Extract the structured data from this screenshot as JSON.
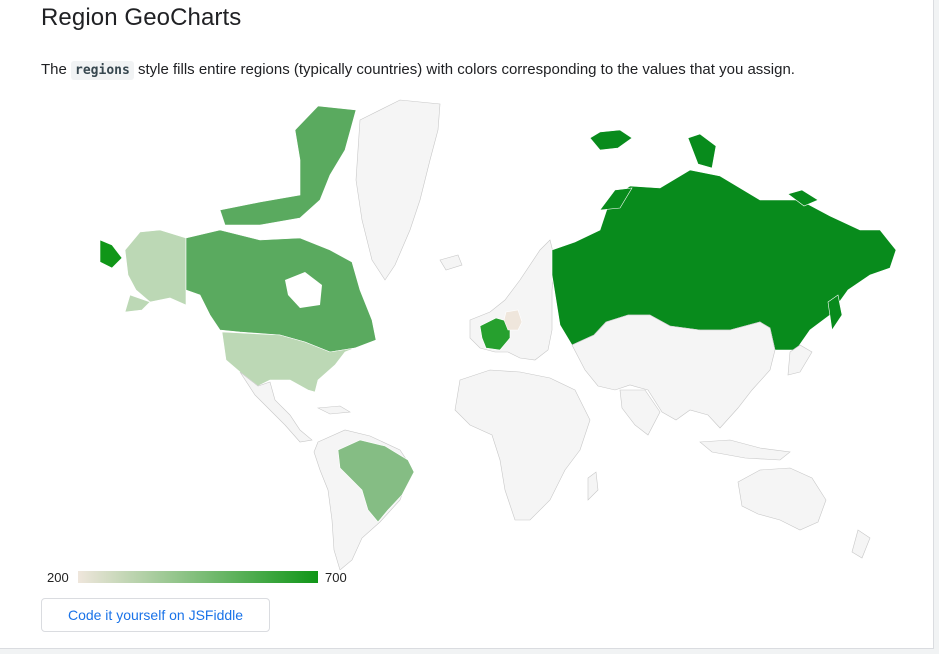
{
  "page": {
    "title": "Region GeoCharts",
    "desc_prefix": "The",
    "desc_code": "regions",
    "desc_suffix": "style fills entire regions (typically countries) with colors corresponding to the values that you assign.",
    "button_label": "Code it yourself on JSFiddle"
  },
  "legend": {
    "min_label": "200",
    "max_label": "700",
    "min_color": "#efe6dc",
    "max_color": "#109618"
  },
  "map_data": {
    "type": "geochart-regions",
    "color_range": [
      200,
      700
    ],
    "no_data_color": "#f5f5f5",
    "regions": [
      {
        "region": "Germany",
        "value": 200
      },
      {
        "region": "United States",
        "value": 300
      },
      {
        "region": "Brazil",
        "value": 400
      },
      {
        "region": "Canada",
        "value": 500
      },
      {
        "region": "France",
        "value": 600
      },
      {
        "region": "RU",
        "value": 700
      }
    ]
  }
}
